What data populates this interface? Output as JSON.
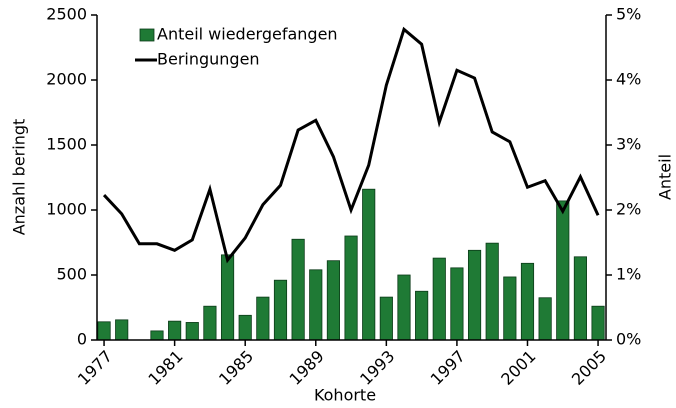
{
  "chart_data": {
    "type": "bar-line",
    "x_label": "Kohorte",
    "y_label": "Anzahl beringt",
    "y2_label": "Anteil",
    "x": [
      1977,
      1978,
      1979,
      1980,
      1981,
      1982,
      1983,
      1984,
      1985,
      1986,
      1987,
      1988,
      1989,
      1990,
      1991,
      1992,
      1993,
      1994,
      1995,
      1996,
      1997,
      1998,
      1999,
      2000,
      2001,
      2002,
      2003,
      2004,
      2005
    ],
    "xlim": [
      1976.6,
      2005.45
    ],
    "xticks": [
      1977,
      1981,
      1985,
      1989,
      1993,
      1997,
      2001,
      2005
    ],
    "ylim": [
      0,
      2500
    ],
    "yticks": [
      0,
      500,
      1000,
      1500,
      2000,
      2500
    ],
    "y2lim": [
      0,
      5
    ],
    "y2ticks": [
      {
        "value": 0,
        "label": "0%"
      },
      {
        "value": 1,
        "label": "1%"
      },
      {
        "value": 2,
        "label": "2%"
      },
      {
        "value": 3,
        "label": "3%"
      },
      {
        "value": 4,
        "label": "4%"
      },
      {
        "value": 5,
        "label": "5%"
      }
    ],
    "legend": "upper-left",
    "series": [
      {
        "name": "Anteil wiedergefangen",
        "type": "bar",
        "axis": "y2",
        "color": "#1f7a35",
        "values": [
          0.28,
          0.31,
          0,
          0.14,
          0.29,
          0.27,
          0.52,
          1.31,
          0.38,
          0.66,
          0.92,
          1.55,
          1.08,
          1.22,
          1.6,
          2.32,
          0.66,
          1.0,
          0.75,
          1.26,
          1.11,
          1.38,
          1.49,
          0.97,
          1.18,
          0.65,
          2.14,
          1.28,
          0.52
        ]
      },
      {
        "name": "Beringungen",
        "type": "line",
        "axis": "y",
        "color": "#000000",
        "values": [
          1115,
          970,
          740,
          740,
          690,
          770,
          1160,
          615,
          785,
          1040,
          1190,
          1615,
          1690,
          1410,
          1000,
          1345,
          1960,
          2390,
          2275,
          1675,
          2075,
          2015,
          1600,
          1525,
          1175,
          1225,
          990,
          1255,
          960
        ]
      }
    ]
  }
}
